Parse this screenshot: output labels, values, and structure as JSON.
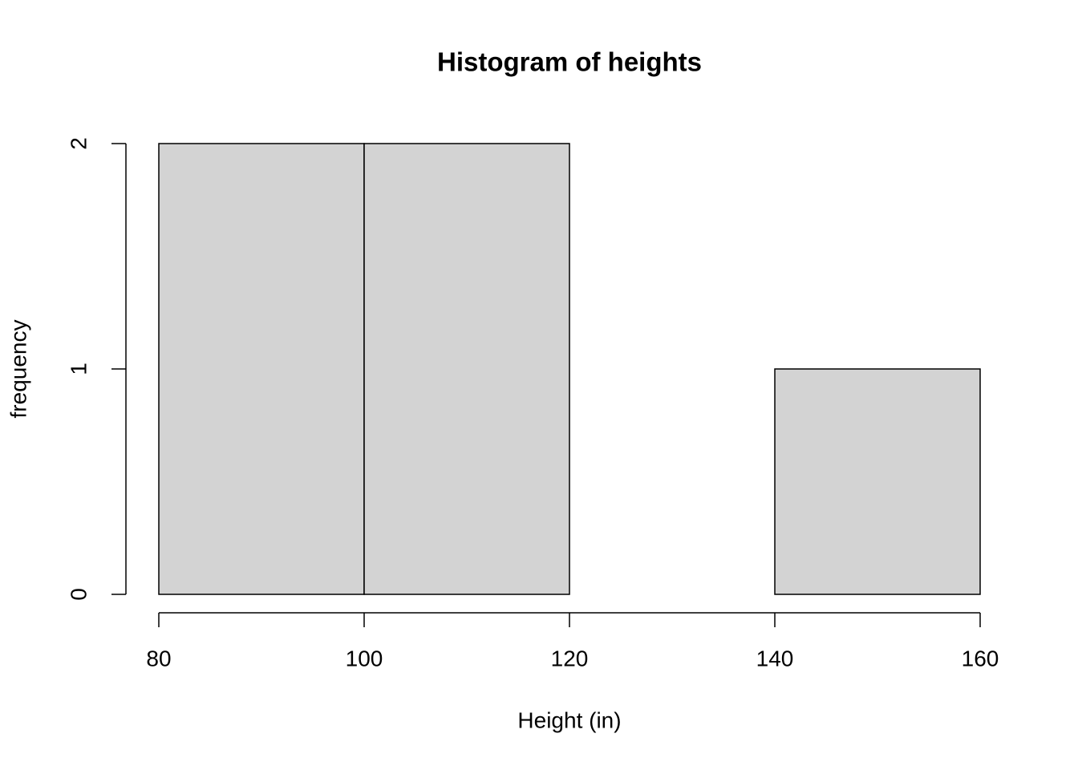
{
  "chart_data": {
    "type": "histogram",
    "title": "Histogram of heights",
    "x_label": "Height (in)",
    "y_label": "frequency",
    "bins": [
      80,
      100,
      120,
      140,
      160
    ],
    "values": [
      2,
      2,
      0,
      1
    ],
    "color": "#d3d3d3",
    "xlim": [
      80,
      160
    ],
    "xticks": [
      80,
      100,
      120,
      140,
      160
    ],
    "ylim": [
      0,
      2
    ],
    "yticks": [
      0,
      1,
      2
    ]
  }
}
